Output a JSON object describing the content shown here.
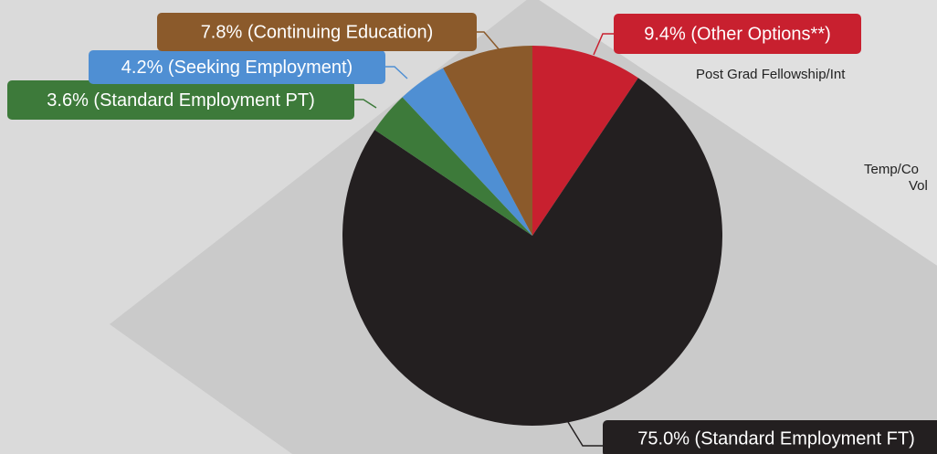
{
  "chart_data": {
    "type": "pie",
    "values": [
      9.4,
      75.0,
      3.6,
      4.2,
      7.8
    ],
    "value_labels": [
      "9.4% (Other Options**)",
      "75.0% (Standard Employment FT)",
      "3.6% (Standard Employment PT)",
      "4.2% (Seeking Employment)",
      "7.8% (Continuing Education)"
    ],
    "colors": [
      "#c8202f",
      "#231f20",
      "#3d7a3a",
      "#4f8fd3",
      "#8b5a2b"
    ],
    "annotations": [
      "Post Grad Fellowship/Int",
      "Temp/Co",
      "Vol"
    ]
  }
}
